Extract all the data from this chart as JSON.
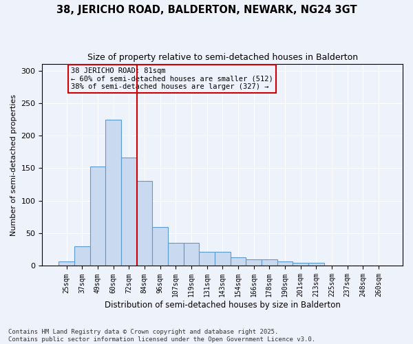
{
  "title_line1": "38, JERICHO ROAD, BALDERTON, NEWARK, NG24 3GT",
  "title_line2": "Size of property relative to semi-detached houses in Balderton",
  "xlabel": "Distribution of semi-detached houses by size in Balderton",
  "ylabel": "Number of semi-detached properties",
  "footnote": "Contains HM Land Registry data © Crown copyright and database right 2025.\nContains public sector information licensed under the Open Government Licence v3.0.",
  "bin_labels": [
    "25sqm",
    "37sqm",
    "49sqm",
    "60sqm",
    "72sqm",
    "84sqm",
    "96sqm",
    "107sqm",
    "119sqm",
    "131sqm",
    "143sqm",
    "154sqm",
    "166sqm",
    "178sqm",
    "190sqm",
    "201sqm",
    "213sqm",
    "225sqm",
    "237sqm",
    "248sqm",
    "260sqm"
  ],
  "bar_heights": [
    7,
    30,
    153,
    224,
    166,
    130,
    60,
    35,
    35,
    22,
    22,
    13,
    10,
    10,
    7,
    5,
    5,
    0,
    0,
    0,
    0
  ],
  "bar_color": "#c9d9f0",
  "bar_edge_color": "#5b9bd5",
  "vline_x": 4.5,
  "annotation_title": "38 JERICHO ROAD: 81sqm",
  "annotation_line2": "← 60% of semi-detached houses are smaller (512)",
  "annotation_line3": "38% of semi-detached houses are larger (327) →",
  "annotation_color": "#cc0000",
  "ylim": [
    0,
    310
  ],
  "yticks": [
    0,
    50,
    100,
    150,
    200,
    250,
    300
  ],
  "background_color": "#eef2fb"
}
